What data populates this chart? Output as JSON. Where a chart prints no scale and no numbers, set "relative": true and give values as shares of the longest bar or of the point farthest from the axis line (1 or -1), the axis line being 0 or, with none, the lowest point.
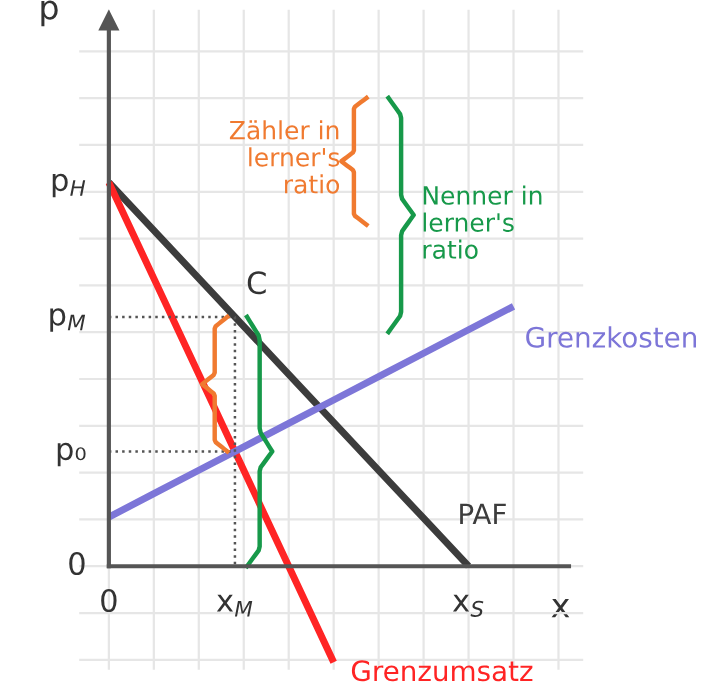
{
  "chart_data": {
    "type": "line",
    "relative": true,
    "xlabel": "x",
    "ylabel": "p",
    "categories": [
      null,
      null,
      null,
      null,
      null,
      null,
      null,
      null,
      null,
      null,
      null
    ],
    "series": [
      {
        "name": "PAF",
        "color": "#3c3c3c",
        "values": [
          1,
          0.875,
          0.75,
          0.625,
          0.5,
          0.375,
          0.25,
          0.125,
          0,
          null,
          null
        ]
      },
      {
        "name": "Grenzumsatz",
        "color": "#ff2424",
        "values": [
          1,
          0.75,
          0.5,
          0.25,
          0,
          -0.25,
          null,
          null,
          null,
          null,
          null
        ]
      },
      {
        "name": "Grenzkosten",
        "color": "#7d76d8",
        "values": [
          0.128,
          0.189,
          0.25,
          0.311,
          0.372,
          0.433,
          0.494,
          0.555,
          0.616,
          0.677,
          null
        ]
      }
    ],
    "annotations": [
      "0",
      "p₀",
      "p$_{M}$",
      "p$_{H}$",
      "0",
      "x$_{M}$",
      "x$_{S}$",
      "C",
      "Zähler in\nlerner's\nratio",
      "Nenner in\nlerner's\nratio"
    ],
    "grid": true
  }
}
